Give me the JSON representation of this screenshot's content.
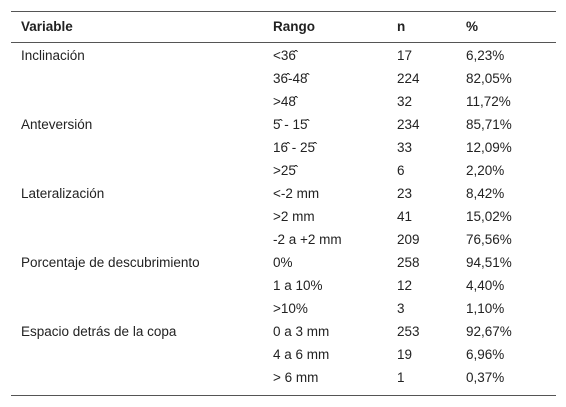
{
  "table": {
    "header": [
      "Variable",
      "Rango",
      "n",
      "%"
    ],
    "groups": [
      {
        "variable": "Inclinación",
        "rows": [
          [
            "<36̂",
            17,
            "6,23%"
          ],
          [
            "36̂-48̂",
            224,
            "82,05%"
          ],
          [
            ">48̂",
            32,
            "11,72%"
          ]
        ]
      },
      {
        "variable": "Anteversión",
        "rows": [
          [
            "5̂ - 15̂",
            234,
            "85,71%"
          ],
          [
            "16̂ - 25̂",
            33,
            "12,09%"
          ],
          [
            ">25̂",
            6,
            "2,20%"
          ]
        ]
      },
      {
        "variable": "Lateralización",
        "rows": [
          [
            "<-2 mm",
            23,
            "8,42%"
          ],
          [
            ">2 mm",
            41,
            "15,02%"
          ],
          [
            "-2 a +2 mm",
            209,
            "76,56%"
          ]
        ]
      },
      {
        "variable": "Porcentaje de descubrimiento",
        "rows": [
          [
            "0%",
            258,
            "94,51%"
          ],
          [
            "1 a 10%",
            12,
            "4,40%"
          ],
          [
            ">10%",
            3,
            "1,10%"
          ]
        ]
      },
      {
        "variable": "Espacio detrás de la copa",
        "rows": [
          [
            "0 a 3 mm",
            253,
            "92,67%"
          ],
          [
            "4 a 6 mm",
            19,
            "6,96%"
          ],
          [
            "> 6 mm",
            1,
            "0,37%"
          ]
        ]
      }
    ]
  }
}
